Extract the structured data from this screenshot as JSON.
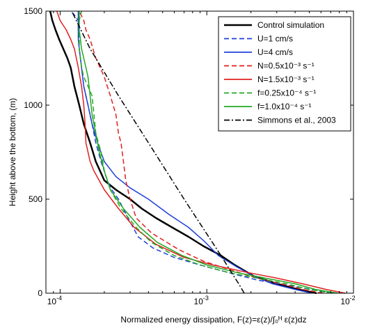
{
  "chart_data": {
    "type": "line",
    "title": "",
    "xlabel": "Normalized energy dissipation, F(z)=ε(z)/∫₀ᴴ ε(z)dz",
    "ylabel": "Height above the bottom, (m)",
    "xscale": "log",
    "xlim": [
      8e-05,
      0.01
    ],
    "ylim": [
      0,
      1500
    ],
    "x_ticks": [
      {
        "value": 0.0001,
        "base": "10",
        "exp": "-4"
      },
      {
        "value": 0.001,
        "base": "10",
        "exp": "-3"
      },
      {
        "value": 0.01,
        "base": "10",
        "exp": "-2"
      }
    ],
    "y_ticks": [
      {
        "value": 0,
        "label": "0"
      },
      {
        "value": 500,
        "label": "500"
      },
      {
        "value": 1000,
        "label": "1000"
      },
      {
        "value": 1500,
        "label": "1500"
      }
    ],
    "grid": false,
    "legend_position": "top-right",
    "series": [
      {
        "name": "Control simulation",
        "color": "#000000",
        "dash": "solid",
        "width": 2.5,
        "x": [
          0.0056,
          0.0042,
          0.003,
          0.0021,
          0.00155,
          0.00125,
          0.00095,
          0.00075,
          0.00058,
          0.00045,
          0.00036,
          0.0003,
          0.00024,
          0.0002,
          0.000175,
          0.00016,
          0.000145,
          0.000135,
          0.000125,
          0.000118,
          0.000112,
          0.000105,
          9.85e-05,
          9.3e-05,
          8.85e-05,
          8.55e-05
        ],
        "y": [
          0,
          20,
          50,
          90,
          150,
          200,
          250,
          300,
          350,
          400,
          450,
          500,
          550,
          600,
          700,
          800,
          900,
          1000,
          1100,
          1200,
          1250,
          1300,
          1350,
          1400,
          1450,
          1500
        ]
      },
      {
        "name": "U=1 cm/s",
        "color": "#1f3fd9",
        "dash": "dashed",
        "width": 1.5,
        "x": [
          0.0071,
          0.0052,
          0.0037,
          0.0022,
          0.0014,
          0.0009,
          0.0006,
          0.00043,
          0.00034,
          0.00029,
          0.00025,
          0.000225,
          0.00021,
          0.00019,
          0.000175,
          0.000165,
          0.000155,
          0.000145,
          0.00014,
          0.000135,
          0.000133,
          0.000133,
          0.000133,
          0.000125,
          0.000118
        ],
        "y": [
          0,
          20,
          40,
          70,
          110,
          150,
          190,
          240,
          300,
          400,
          500,
          550,
          600,
          700,
          800,
          900,
          1000,
          1100,
          1200,
          1300,
          1400,
          1420,
          1450,
          1480,
          1500
        ]
      },
      {
        "name": "U=4 cm/s",
        "color": "#1f3fd9",
        "dash": "solid",
        "width": 1.5,
        "x": [
          0.0052,
          0.004,
          0.0028,
          0.0021,
          0.0016,
          0.0012,
          0.00095,
          0.00075,
          0.00055,
          0.0004,
          0.0003,
          0.00024,
          0.0002,
          0.00018,
          0.000165,
          0.000155,
          0.000145,
          0.00014,
          0.000135,
          0.000133,
          0.000133,
          0.000133,
          0.000133
        ],
        "y": [
          0,
          20,
          50,
          90,
          140,
          200,
          280,
          350,
          420,
          500,
          560,
          620,
          700,
          800,
          900,
          1000,
          1100,
          1200,
          1300,
          1350,
          1400,
          1450,
          1500
        ]
      },
      {
        "name": "N=0.5x10⁻³ s⁻¹",
        "color": "#e01f1f",
        "dash": "dashed",
        "width": 1.5,
        "x": [
          0.0062,
          0.0045,
          0.0032,
          0.0022,
          0.0015,
          0.00095,
          0.00065,
          0.00042,
          0.00033,
          0.0003,
          0.00028,
          0.00027,
          0.00026,
          0.00025,
          0.00024,
          0.00022,
          0.0002,
          0.000175,
          0.00016,
          0.00015,
          0.000145,
          0.000135
        ],
        "y": [
          0,
          20,
          50,
          80,
          120,
          170,
          230,
          320,
          400,
          500,
          600,
          700,
          800,
          850,
          950,
          1050,
          1150,
          1250,
          1350,
          1400,
          1450,
          1500
        ]
      },
      {
        "name": "N=1.5x10⁻³ s⁻¹",
        "color": "#e01f1f",
        "dash": "solid",
        "width": 1.5,
        "x": [
          0.0088,
          0.0065,
          0.0045,
          0.003,
          0.0019,
          0.0011,
          0.0007,
          0.00045,
          0.00032,
          0.00025,
          0.0002,
          0.00017,
          0.00016,
          0.00015,
          0.000148,
          0.000145,
          0.00014,
          0.000133,
          0.000125,
          0.000118,
          0.00011,
          0.0001,
          9.5e-05
        ],
        "y": [
          0,
          20,
          50,
          80,
          110,
          150,
          190,
          260,
          350,
          450,
          550,
          650,
          700,
          800,
          900,
          1000,
          1100,
          1200,
          1300,
          1350,
          1400,
          1450,
          1500
        ]
      },
      {
        "name": "f=0.25x10⁻⁴ s⁻¹",
        "color": "#22a822",
        "dash": "dashed",
        "width": 1.5,
        "x": [
          0.0072,
          0.005,
          0.0035,
          0.0022,
          0.0014,
          0.0009,
          0.0006,
          0.00042,
          0.00033,
          0.00026,
          0.00022,
          0.0002,
          0.00019,
          0.000175,
          0.00017,
          0.000165,
          0.000155,
          0.000145,
          0.00014,
          0.000135,
          0.000135,
          0.000135,
          0.00014
        ],
        "y": [
          0,
          20,
          50,
          80,
          110,
          150,
          200,
          270,
          350,
          450,
          550,
          650,
          750,
          850,
          950,
          1050,
          1100,
          1150,
          1200,
          1300,
          1400,
          1450,
          1500
        ]
      },
      {
        "name": "f=1.0x10⁻⁴ s⁻¹",
        "color": "#22a822",
        "dash": "solid",
        "width": 1.5,
        "x": [
          0.0078,
          0.0055,
          0.004,
          0.0025,
          0.0016,
          0.001,
          0.00068,
          0.00046,
          0.00035,
          0.00027,
          0.00022,
          0.0002,
          0.000185,
          0.000175,
          0.000165,
          0.00016,
          0.000155,
          0.00015,
          0.000145,
          0.00014,
          0.000135,
          0.000135,
          0.000135
        ],
        "y": [
          0,
          20,
          50,
          80,
          110,
          150,
          200,
          270,
          350,
          450,
          550,
          650,
          750,
          850,
          950,
          1050,
          1150,
          1200,
          1250,
          1300,
          1400,
          1450,
          1500
        ]
      },
      {
        "name": "Simmons et al., 2003",
        "color": "#000000",
        "dash": "dashdot",
        "width": 1.5,
        "x": [
          0.0018,
          0.00165,
          0.0015,
          0.00125,
          0.0007,
          0.0004,
          0.00025,
          0.00016,
          0.00012
        ],
        "y": [
          0,
          50,
          100,
          200,
          500,
          800,
          1050,
          1300,
          1500
        ]
      }
    ]
  }
}
